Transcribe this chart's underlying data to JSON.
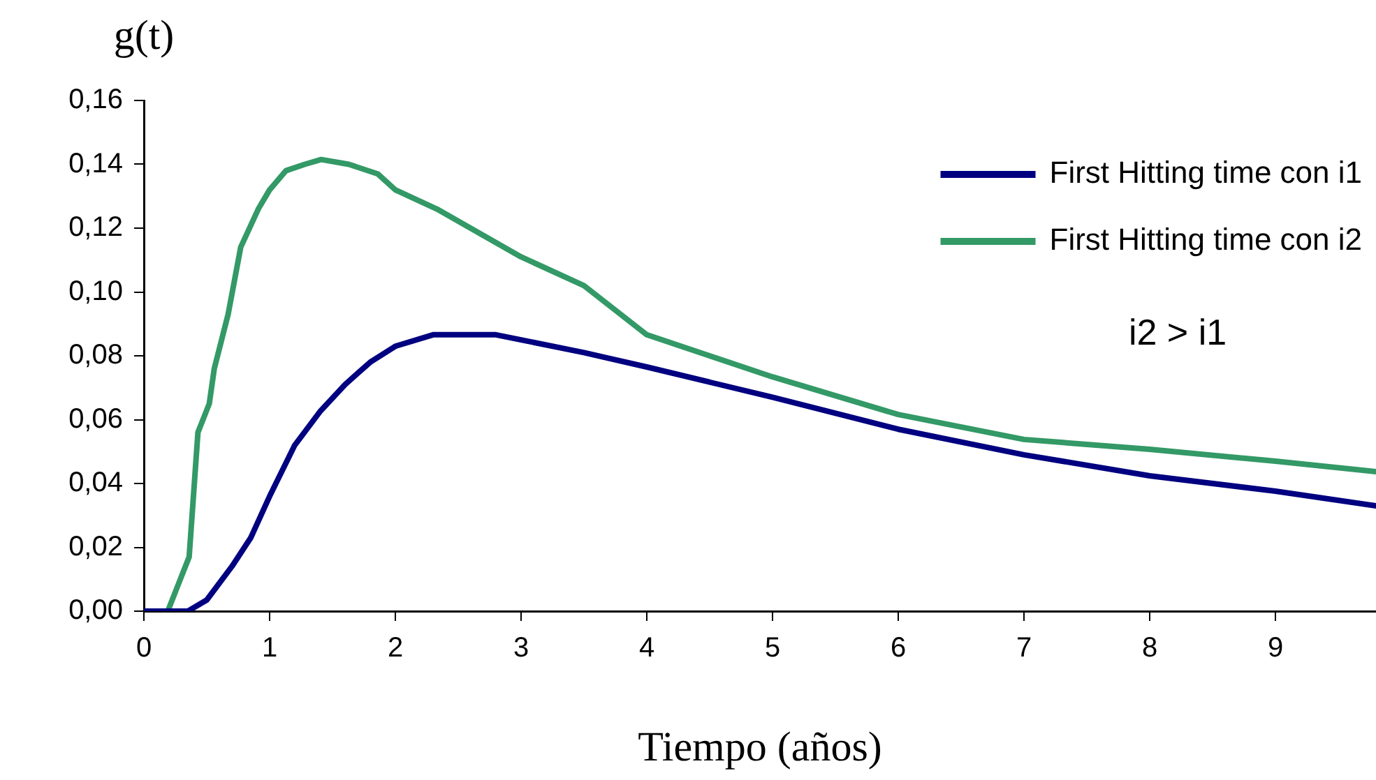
{
  "chart_data": {
    "type": "line",
    "xlabel": "Tiempo (años)",
    "ylabel": "g(t)",
    "annotations": [
      "i2 > i1"
    ],
    "xlim": [
      0,
      9.8
    ],
    "xticks": [
      0,
      1,
      2,
      3,
      4,
      5,
      6,
      7,
      8,
      9
    ],
    "ylim": [
      0,
      0.16
    ],
    "yticks": [
      {
        "value": 0,
        "label": "0,00"
      },
      {
        "value": 0.02,
        "label": "0,02"
      },
      {
        "value": 0.04,
        "label": "0,04"
      },
      {
        "value": 0.06,
        "label": "0,06"
      },
      {
        "value": 0.08,
        "label": "0,08"
      },
      {
        "value": 0.1,
        "label": "0,10"
      },
      {
        "value": 0.12,
        "label": "0,12"
      },
      {
        "value": 0.14,
        "label": "0,14"
      },
      {
        "value": 0.16,
        "label": "0,16"
      }
    ],
    "grid": false,
    "legend": "top right",
    "marker": "none",
    "line_style": "solid",
    "series": [
      {
        "name": "First Hitting time con i1",
        "color": "#000080",
        "x": [
          0,
          0.35,
          0.5,
          0.7,
          0.85,
          1.0,
          1.2,
          1.4,
          1.6,
          1.8,
          2.0,
          2.3,
          2.8,
          3.0,
          3.5,
          4,
          5,
          6,
          7,
          8,
          9,
          9.8
        ],
        "values": [
          0,
          0,
          0.0035,
          0.014,
          0.023,
          0.036,
          0.052,
          0.0625,
          0.071,
          0.078,
          0.083,
          0.0866,
          0.0866,
          0.085,
          0.081,
          0.0765,
          0.067,
          0.057,
          0.049,
          0.0424,
          0.0376,
          0.033
        ]
      },
      {
        "name": "First Hitting time con i2",
        "color": "#339966",
        "x": [
          0,
          0.19,
          0.27,
          0.36,
          0.43,
          0.52,
          0.56,
          0.67,
          0.77,
          0.91,
          1.0,
          1.13,
          1.28,
          1.41,
          1.63,
          1.86,
          2.0,
          2.33,
          3,
          3.5,
          4,
          4.5,
          5,
          6,
          7,
          8,
          9,
          9.8
        ],
        "values": [
          0,
          0,
          0.008,
          0.017,
          0.056,
          0.065,
          0.076,
          0.093,
          0.114,
          0.126,
          0.132,
          0.138,
          0.14,
          0.1415,
          0.14,
          0.137,
          0.132,
          0.126,
          0.111,
          0.102,
          0.0866,
          0.08,
          0.0734,
          0.0616,
          0.0538,
          0.0507,
          0.047,
          0.0437
        ]
      }
    ]
  }
}
